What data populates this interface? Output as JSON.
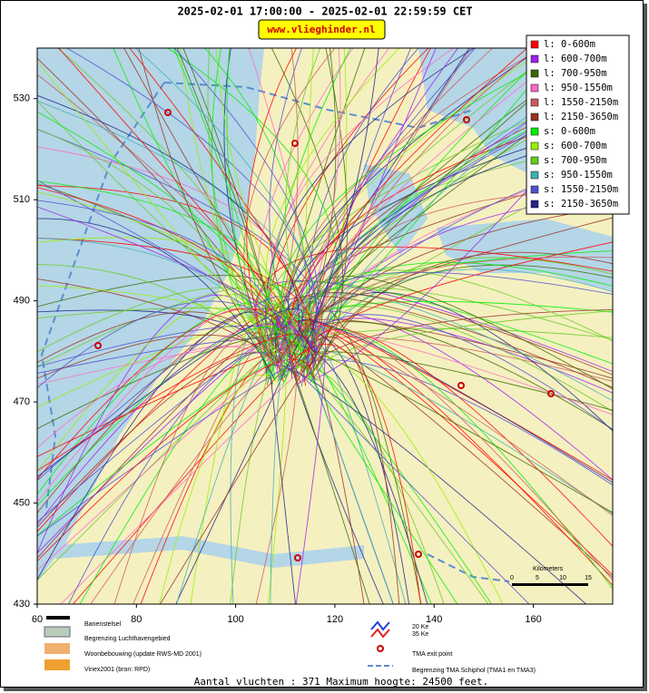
{
  "header": {
    "title": "2025-02-01 17:00:00 - 2025-02-01 22:59:59 CET",
    "site": "www.vlieghinder.nl"
  },
  "map": {
    "xlim": [
      60,
      176
    ],
    "ylim": [
      430,
      540
    ],
    "xticks": [
      60,
      80,
      100,
      120,
      140,
      160
    ],
    "yticks": [
      430,
      450,
      470,
      490,
      510,
      530
    ]
  },
  "altitude_legend": [
    {
      "label": "l: 0-600m",
      "color": "#ff0000"
    },
    {
      "label": "l: 600-700m",
      "color": "#a020f0"
    },
    {
      "label": "l: 700-950m",
      "color": "#3d6b00"
    },
    {
      "label": "l: 950-1550m",
      "color": "#ff69c8"
    },
    {
      "label": "l: 1550-2150m",
      "color": "#cd5c5c"
    },
    {
      "label": "l: 2150-3650m",
      "color": "#993322"
    },
    {
      "label": "s: 0-600m",
      "color": "#00ee00"
    },
    {
      "label": "s: 600-700m",
      "color": "#99ee00"
    },
    {
      "label": "s: 700-950m",
      "color": "#66cc22"
    },
    {
      "label": "s: 950-1550m",
      "color": "#40b0b0"
    },
    {
      "label": "s: 1550-2150m",
      "color": "#5050d0"
    },
    {
      "label": "s: 2150-3650m",
      "color": "#25258a"
    }
  ],
  "map_legend": {
    "runways": "Banenstelsel",
    "airport_boundary": "Begrenzing Luchthavengebied",
    "housing": "Woonbebouwing (update RWS-MD 2001)",
    "vinex": "Vinex2001 (bron: RPD)",
    "ke20": "20 Ke",
    "ke35": "35 Ke",
    "tma_exit": "TMA exit point",
    "tma_boundary": "Begrenzing TMA Schiphol  (TMA1 en TMA3)"
  },
  "scale_bar": {
    "title": "Kilometers",
    "labels": [
      "0",
      "5",
      "10",
      "15"
    ]
  },
  "footer": "Aantal vluchten : 371 Maximum hoogte: 24500 feet."
}
